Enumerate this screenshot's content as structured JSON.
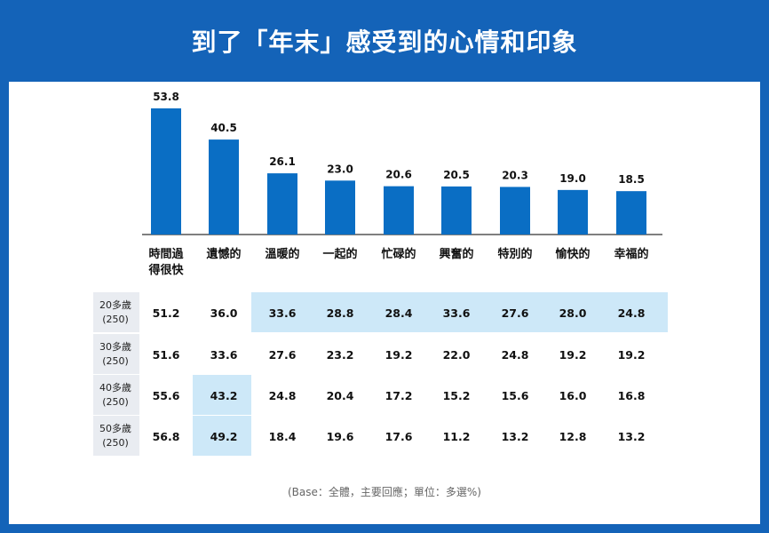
{
  "title": "到了「年末」感受到的心情和印象",
  "footnote": "(Base：全體，主要回應；單位：多選%)",
  "colors": {
    "bar": "#0a6ec4",
    "header": "#1463b8",
    "highlight": "#cde8f8",
    "rowlabel": "#e9ecf1"
  },
  "chart_data": {
    "type": "bar",
    "categories": [
      "時間過\n得很快",
      "遺憾的",
      "溫暖的",
      "一起的",
      "忙碌的",
      "興奮的",
      "特別的",
      "愉快的",
      "幸福的"
    ],
    "values": [
      53.8,
      40.5,
      26.1,
      23.0,
      20.6,
      20.5,
      20.3,
      19.0,
      18.5
    ],
    "value_labels": [
      "53.8",
      "40.5",
      "26.1",
      "23.0",
      "20.6",
      "20.5",
      "20.3",
      "19.0",
      "18.5"
    ],
    "ylim": [
      0,
      53.8
    ],
    "grid": false,
    "legend": "none"
  },
  "table": {
    "rows": [
      {
        "label": "20多歲",
        "n": "(250)",
        "values": [
          "51.2",
          "36.0",
          "33.6",
          "28.8",
          "28.4",
          "33.6",
          "27.6",
          "28.0",
          "24.8"
        ],
        "highlight": [
          2,
          3,
          4,
          5,
          6,
          7,
          8
        ]
      },
      {
        "label": "30多歲",
        "n": "(250)",
        "values": [
          "51.6",
          "33.6",
          "27.6",
          "23.2",
          "19.2",
          "22.0",
          "24.8",
          "19.2",
          "19.2"
        ],
        "highlight": []
      },
      {
        "label": "40多歲",
        "n": "(250)",
        "values": [
          "55.6",
          "43.2",
          "24.8",
          "20.4",
          "17.2",
          "15.2",
          "15.6",
          "16.0",
          "16.8"
        ],
        "highlight": [
          1
        ]
      },
      {
        "label": "50多歲",
        "n": "(250)",
        "values": [
          "56.8",
          "49.2",
          "18.4",
          "19.6",
          "17.6",
          "11.2",
          "13.2",
          "12.8",
          "13.2"
        ],
        "highlight": [
          1
        ]
      }
    ]
  }
}
